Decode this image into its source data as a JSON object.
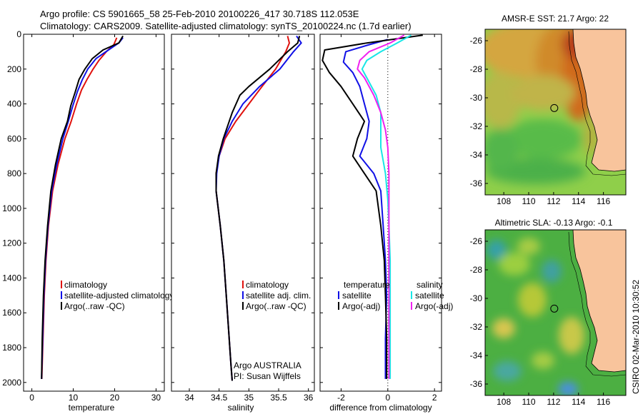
{
  "header": {
    "line1": "Argo profile: CS 5901665_58 25-Feb-2010 20100226_417 30.718S 112.053E",
    "line2": "Climatology: CARS2009. Satellite-adjusted climatology: synTS_20100224.nc (1.7d earlier)"
  },
  "colors": {
    "red": "#e0120e",
    "blue": "#1010e6",
    "black": "#000000",
    "cyan": "#18e6e6",
    "magenta": "#f020f0",
    "land": "#f8c49c"
  },
  "chart_data": [
    {
      "type": "line",
      "id": "temperature",
      "xlabel": "temperature",
      "ylabel": "",
      "xlim": [
        -2,
        32
      ],
      "ylim": [
        2050,
        0
      ],
      "y_reversed": true,
      "xticks": [
        0,
        10,
        20,
        30
      ],
      "yticks": [
        0,
        200,
        400,
        600,
        800,
        1000,
        1200,
        1400,
        1600,
        1800,
        2000
      ],
      "legend": [
        "climatology",
        "satellite-adjusted climatology",
        "Argo(..raw -QC)"
      ],
      "series": [
        {
          "name": "climatology",
          "color": "red",
          "x": [
            20.5,
            19.8,
            18,
            16.2,
            14.8,
            13.3,
            12,
            10.8,
            9.5,
            8,
            6.3,
            5,
            4,
            3.4,
            3,
            2.7,
            2.4
          ],
          "y": [
            20,
            60,
            100,
            150,
            200,
            260,
            320,
            400,
            500,
            600,
            750,
            900,
            1100,
            1300,
            1500,
            1750,
            1980
          ]
        },
        {
          "name": "satellite-adjusted climatology",
          "color": "blue",
          "x": [
            22,
            21,
            18.5,
            15.5,
            13.5,
            12.2,
            11,
            9.9,
            8.8,
            7.5,
            6,
            4.8,
            3.9,
            3.3,
            2.9,
            2.6,
            2.35
          ],
          "y": [
            20,
            50,
            90,
            140,
            200,
            260,
            330,
            410,
            500,
            600,
            750,
            900,
            1100,
            1300,
            1500,
            1750,
            1980
          ]
        },
        {
          "name": "Argo(..raw -QC)",
          "color": "black",
          "x": [
            22,
            21,
            17.2,
            14.6,
            12.8,
            11.4,
            10.5,
            9.4,
            8.6,
            7.1,
            5.7,
            4.6,
            3.8,
            3.2,
            2.8,
            2.5,
            2.35
          ],
          "y": [
            10,
            50,
            90,
            140,
            200,
            260,
            330,
            410,
            500,
            600,
            750,
            900,
            1100,
            1300,
            1500,
            1750,
            1980
          ]
        }
      ]
    },
    {
      "type": "line",
      "id": "salinity",
      "xlabel": "salinity",
      "ylabel": "",
      "xlim": [
        33.7,
        36.1
      ],
      "ylim": [
        2050,
        0
      ],
      "y_reversed": true,
      "xticks": [
        34,
        34.5,
        35,
        35.5,
        36
      ],
      "yticks": [],
      "legend": [
        "climatology",
        "satellite adj. clim.",
        "Argo(..raw -QC)"
      ],
      "annotation": [
        "Argo AUSTRALIA",
        "PI: Susan Wijffels"
      ],
      "series": [
        {
          "name": "climatology",
          "color": "red",
          "x": [
            35.65,
            35.68,
            35.62,
            35.45,
            35.22,
            35.0,
            34.78,
            34.6,
            34.5,
            34.45,
            34.45,
            34.52,
            34.58,
            34.62,
            34.66,
            34.7,
            34.72
          ],
          "y": [
            10,
            50,
            100,
            200,
            300,
            400,
            500,
            600,
            700,
            800,
            900,
            1100,
            1300,
            1500,
            1700,
            1900,
            1990
          ]
        },
        {
          "name": "satellite adj. clim.",
          "color": "blue",
          "x": [
            35.8,
            35.88,
            35.75,
            35.52,
            35.18,
            34.9,
            34.72,
            34.58,
            34.5,
            34.46,
            34.45,
            34.52,
            34.58,
            34.62,
            34.66,
            34.7,
            34.72
          ],
          "y": [
            10,
            50,
            100,
            200,
            300,
            400,
            500,
            600,
            700,
            800,
            900,
            1100,
            1300,
            1500,
            1700,
            1900,
            1990
          ]
        },
        {
          "name": "Argo(..raw -QC)",
          "color": "black",
          "x": [
            35.85,
            35.82,
            35.65,
            35.35,
            35.0,
            34.85,
            34.72,
            34.57,
            34.49,
            34.45,
            34.45,
            34.52,
            34.58,
            34.62,
            34.66,
            34.7,
            34.72
          ],
          "y": [
            10,
            50,
            100,
            200,
            300,
            350,
            450,
            600,
            700,
            800,
            900,
            1100,
            1300,
            1500,
            1700,
            1900,
            1990
          ]
        }
      ]
    },
    {
      "type": "line",
      "id": "difference",
      "xlabel": "difference from climatology",
      "ylabel": "",
      "xlim": [
        -2.9,
        2.3
      ],
      "ylim": [
        2050,
        0
      ],
      "y_reversed": true,
      "xticks": [
        -2,
        0,
        2
      ],
      "yticks": [],
      "legend_left": [
        "temperature",
        "satellite",
        "Argo(-adj)"
      ],
      "legend_right": [
        "salinity",
        "satellite",
        "Argo(-adj)"
      ],
      "series": [
        {
          "name": "temperature satellite",
          "color": "blue",
          "x": [
            0,
            -0.8,
            -1.8,
            -1.9,
            -1.5,
            -1.2,
            -1.0,
            -0.8,
            -0.9,
            -1.2,
            -0.6,
            -0.3,
            -0.2,
            -0.1,
            -0.05,
            -0.1,
            -0.1
          ],
          "y": [
            30,
            60,
            100,
            160,
            220,
            300,
            400,
            500,
            600,
            700,
            800,
            900,
            1100,
            1300,
            1500,
            1750,
            1980
          ]
        },
        {
          "name": "temperature Argo(-adj)",
          "color": "black",
          "x": [
            1.5,
            -0.9,
            -2.7,
            -2.8,
            -2.5,
            -2.0,
            -1.5,
            -1.0,
            -1.3,
            -1.5,
            -1.0,
            -0.5,
            -0.3,
            -0.15,
            -0.1,
            -0.05,
            -0.05
          ],
          "y": [
            5,
            50,
            90,
            150,
            220,
            300,
            400,
            500,
            600,
            700,
            800,
            900,
            1100,
            1300,
            1500,
            1750,
            1980
          ]
        },
        {
          "name": "salinity satellite",
          "color": "cyan",
          "x": [
            1.0,
            0.4,
            -0.3,
            -0.9,
            -1.1,
            -0.9,
            -0.5,
            -0.3,
            -0.3,
            -0.3,
            -0.1,
            0.0,
            0.05,
            0.1,
            0.1,
            0.1,
            0.1
          ],
          "y": [
            5,
            50,
            100,
            150,
            200,
            250,
            350,
            450,
            550,
            650,
            800,
            950,
            1100,
            1300,
            1500,
            1750,
            1980
          ]
        },
        {
          "name": "salinity Argo(-adj)",
          "color": "magenta",
          "x": [
            0.7,
            0.1,
            -0.8,
            -1.2,
            -1.3,
            -1.0,
            -0.6,
            -0.3,
            -0.1,
            0.0,
            0.05,
            0.05,
            0.05,
            0.05,
            0.05,
            0.05,
            0.05
          ],
          "y": [
            5,
            50,
            100,
            150,
            200,
            250,
            350,
            450,
            550,
            650,
            800,
            950,
            1100,
            1300,
            1500,
            1750,
            1980
          ]
        }
      ]
    },
    {
      "type": "heatmap",
      "id": "sst-map",
      "title": "AMSR-E SST: 21.7 Argo: 22",
      "xlim": [
        106.5,
        117.8
      ],
      "ylim": [
        -36.8,
        -25.2
      ],
      "xticks": [
        108,
        110,
        112,
        114,
        116
      ],
      "yticks": [
        -26,
        -28,
        -30,
        -32,
        -34,
        -36
      ],
      "marker": {
        "lon": 112.053,
        "lat": -30.718
      }
    },
    {
      "type": "heatmap",
      "id": "sla-map",
      "title": "Altimetric SLA: -0.13 Argo: -0.1",
      "xlim": [
        106.5,
        117.8
      ],
      "ylim": [
        -36.8,
        -25.2
      ],
      "xticks": [
        108,
        110,
        112,
        114,
        116
      ],
      "yticks": [
        -26,
        -28,
        -30,
        -32,
        -34,
        -36
      ],
      "marker": {
        "lon": 112.053,
        "lat": -30.718
      }
    }
  ],
  "credit": "CSIRO 02-Mar-2010 10:30:52"
}
